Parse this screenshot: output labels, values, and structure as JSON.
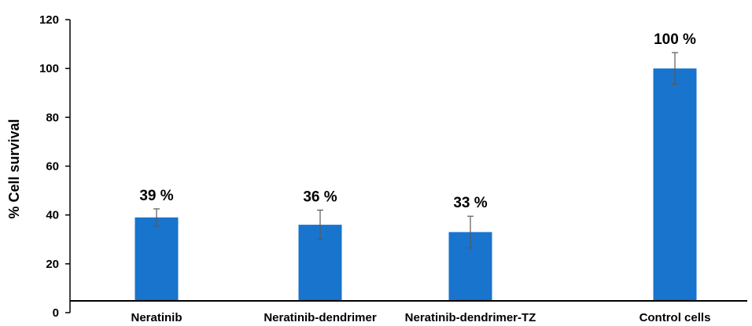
{
  "chart_data": {
    "type": "bar",
    "title": "",
    "xlabel": "",
    "ylabel": "% Cell survival",
    "ylim": [
      0,
      120
    ],
    "yticks": [
      0,
      20,
      40,
      60,
      80,
      100,
      120
    ],
    "grid": false,
    "legend": "none",
    "categories": [
      "Neratinib",
      "Neratinib-dendrimer",
      "Neratinib-dendrimer-TZ",
      "Control cells"
    ],
    "values": [
      39,
      36,
      33,
      100
    ],
    "errors": [
      3.5,
      6,
      6.5,
      6.5
    ],
    "data_labels": [
      "39 %",
      "36 %",
      "33 %",
      "100 %"
    ],
    "bar_color": "#1874CD"
  }
}
